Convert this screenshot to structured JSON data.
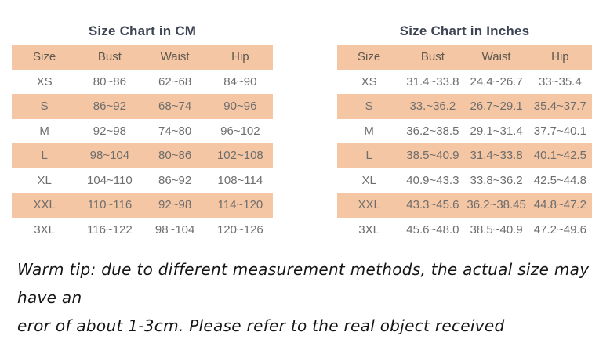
{
  "colors": {
    "stripe_band": "#f5c6a3",
    "title_text": "#3d4452",
    "header_text": "#5c5850",
    "data_text": "#6e6e6e",
    "note_text": "#141414",
    "background": "#ffffff"
  },
  "tables": [
    {
      "title": "Size Chart in CM",
      "columns": [
        "Size",
        "Bust",
        "Waist",
        "Hip"
      ],
      "rows": [
        [
          "XS",
          "80~86",
          "62~68",
          "84~90"
        ],
        [
          "S",
          "86~92",
          "68~74",
          "90~96"
        ],
        [
          "M",
          "92~98",
          "74~80",
          "96~102"
        ],
        [
          "L",
          "98~104",
          "80~86",
          "102~108"
        ],
        [
          "XL",
          "104~110",
          "86~92",
          "108~114"
        ],
        [
          "XXL",
          "110~116",
          "92~98",
          "114~120"
        ],
        [
          "3XL",
          "116~122",
          "98~104",
          "120~126"
        ]
      ]
    },
    {
      "title": "Size Chart in Inches",
      "columns": [
        "Size",
        "Bust",
        "Waist",
        "Hip"
      ],
      "rows": [
        [
          "XS",
          "31.4~33.8",
          "24.4~26.7",
          "33~35.4"
        ],
        [
          "S",
          "33.~36.2",
          "26.7~29.1",
          "35.4~37.7"
        ],
        [
          "M",
          "36.2~38.5",
          "29.1~31.4",
          "37.7~40.1"
        ],
        [
          "L",
          "38.5~40.9",
          "31.4~33.8",
          "40.1~42.5"
        ],
        [
          "XL",
          "40.9~43.3",
          "33.8~36.2",
          "42.5~44.8"
        ],
        [
          "XXL",
          "43.3~45.6",
          "36.2~38.45",
          "44.8~47.2"
        ],
        [
          "3XL",
          "45.6~48.0",
          "38.5~40.9",
          "47.2~49.6"
        ]
      ]
    }
  ],
  "note": {
    "line1": "Warm tip: due to different measurement methods, the actual size may have an",
    "line2": "eror of about 1-3cm. Please refer to the real object received"
  },
  "chart_data": [
    {
      "type": "table",
      "title": "Size Chart in CM",
      "columns": [
        "Size",
        "Bust",
        "Waist",
        "Hip"
      ],
      "rows": [
        [
          "XS",
          "80~86",
          "62~68",
          "84~90"
        ],
        [
          "S",
          "86~92",
          "68~74",
          "90~96"
        ],
        [
          "M",
          "92~98",
          "74~80",
          "96~102"
        ],
        [
          "L",
          "98~104",
          "80~86",
          "102~108"
        ],
        [
          "XL",
          "104~110",
          "86~92",
          "108~114"
        ],
        [
          "XXL",
          "110~116",
          "92~98",
          "114~120"
        ],
        [
          "3XL",
          "116~122",
          "98~104",
          "120~126"
        ]
      ],
      "layout_hints": {
        "striped_rows": [
          "header",
          "S",
          "L",
          "XXL"
        ],
        "stripe_color": "#f5c6a3"
      }
    },
    {
      "type": "table",
      "title": "Size Chart in Inches",
      "columns": [
        "Size",
        "Bust",
        "Waist",
        "Hip"
      ],
      "rows": [
        [
          "XS",
          "31.4~33.8",
          "24.4~26.7",
          "33~35.4"
        ],
        [
          "S",
          "33.~36.2",
          "26.7~29.1",
          "35.4~37.7"
        ],
        [
          "M",
          "36.2~38.5",
          "29.1~31.4",
          "37.7~40.1"
        ],
        [
          "L",
          "38.5~40.9",
          "31.4~33.8",
          "40.1~42.5"
        ],
        [
          "XL",
          "40.9~43.3",
          "33.8~36.2",
          "42.5~44.8"
        ],
        [
          "XXL",
          "43.3~45.6",
          "36.2~38.45",
          "44.8~47.2"
        ],
        [
          "3XL",
          "45.6~48.0",
          "38.5~40.9",
          "47.2~49.6"
        ]
      ],
      "layout_hints": {
        "striped_rows": [
          "header",
          "S",
          "L",
          "XXL"
        ],
        "stripe_color": "#f5c6a3"
      }
    }
  ]
}
